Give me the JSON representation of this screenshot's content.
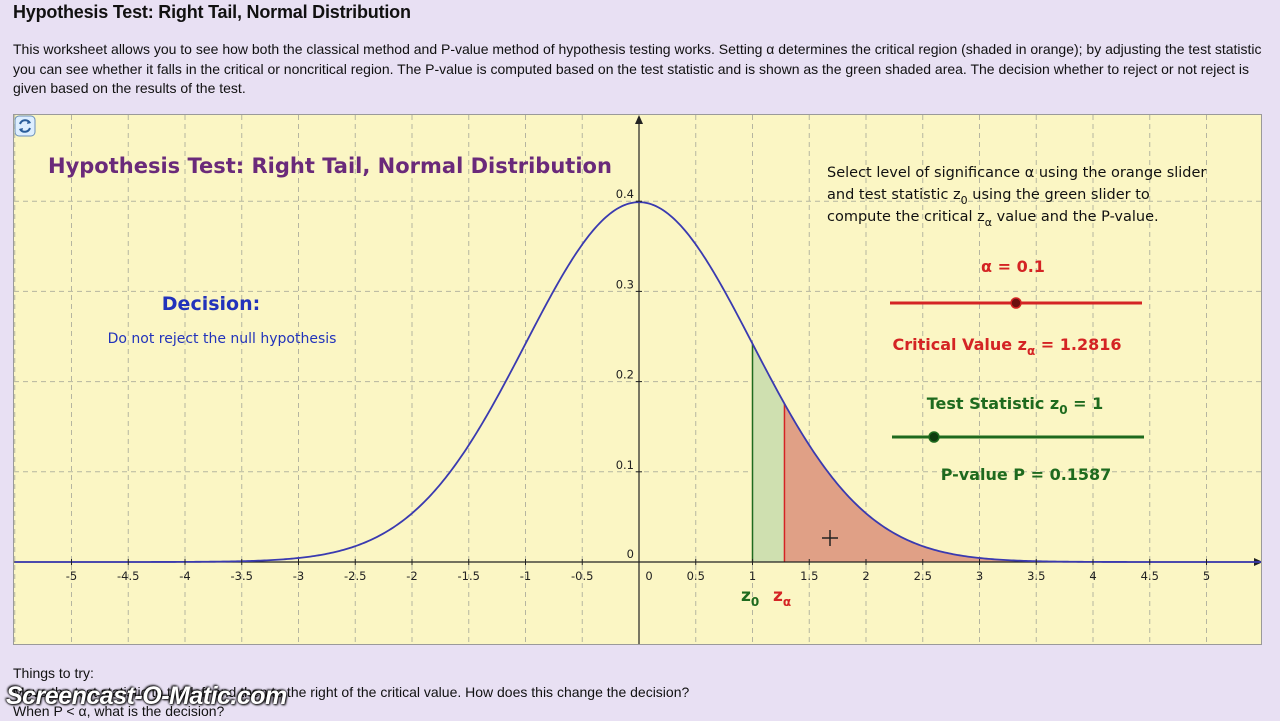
{
  "page": {
    "title": "Hypothesis Test: Right Tail, Normal Distribution",
    "intro": "This worksheet allows you to see how both the classical method and P-value method of hypothesis testing works. Setting α determines the critical region (shaded in orange); by adjusting the test statistic you can see whether it falls in the critical or noncritical region. The P-value is computed based on the test statistic and is shown as the green shaded area. The decision whether to reject or not reject is given based on the results of the test.",
    "things_heading": "Things to try:",
    "things_items": [
      "Move the test statistic to the left and then to the right of the critical value. How does this change the decision?",
      "When P < α, what is the decision?"
    ],
    "watermark": "Screencast-O-Matic.com"
  },
  "applet": {
    "title": "Hypothesis Test:  Right Tail, Normal Distribution",
    "instructions": {
      "line1": "Select level of significance α using the orange slider",
      "line2_pre": "and test statistic z",
      "line2_sub": "0",
      "line2_post": " using the green slider to",
      "line3_pre": "compute the critical z",
      "line3_sub": "α",
      "line3_post": " value and the P-value."
    },
    "decision_heading": "Decision:",
    "decision_text": "Do not reject the null hypothesis",
    "alpha_label": "α = 0.1",
    "alpha_value": 0.1,
    "critical_label_pre": "Critical Value z",
    "critical_label_sub": "α",
    "critical_label_post": " = 1.2816",
    "critical_value": 1.2816,
    "test_stat_label_pre": "Test Statistic z",
    "test_stat_label_sub": "0",
    "test_stat_label_post": " = 1",
    "test_stat_value": 1,
    "pvalue_label": "P-value P = 0.1587",
    "pvalue_value": 0.1587,
    "z0_marker": "z",
    "z0_marker_sub": "0",
    "za_marker": "z",
    "za_marker_sub": "α",
    "colors": {
      "title": "#6a2a7a",
      "decision": "#2233bb",
      "alpha": "#d42424",
      "teststat": "#1e6a1e",
      "curve": "#3a3ab0",
      "pvalue_fill": "#cfe0b0",
      "critical_fill": "#e0a086"
    }
  },
  "chart_data": {
    "type": "area",
    "function": "standard normal density",
    "xlim": [
      -5.5,
      5.5
    ],
    "ylim": [
      0,
      0.47
    ],
    "x_ticks": [
      "-5",
      "-4.5",
      "-4",
      "-3.5",
      "-3",
      "-2.5",
      "-2",
      "-1.5",
      "-1",
      "-0.5",
      "0",
      "0.5",
      "1",
      "1.5",
      "2",
      "2.5",
      "3",
      "3.5",
      "4",
      "4.5",
      "5"
    ],
    "y_ticks": [
      "0",
      "0.1",
      "0.2",
      "0.3",
      "0.4"
    ],
    "grid": true,
    "shaded_regions": [
      {
        "from": 1,
        "to": 1.2816,
        "meaning": "P-value"
      },
      {
        "from": 1.2816,
        "to": 5.5,
        "meaning": "critical region"
      }
    ]
  }
}
